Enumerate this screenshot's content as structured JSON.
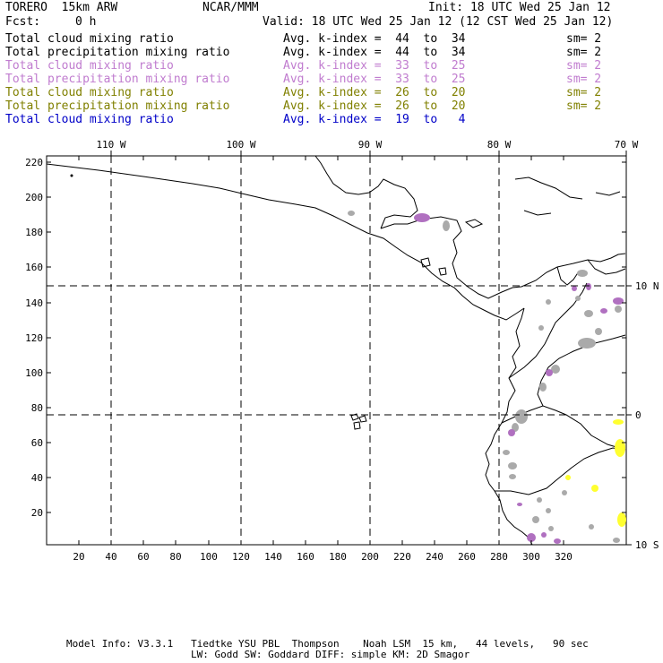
{
  "header": {
    "model": "TORERO  15km ARW",
    "org": "NCAR/MMM",
    "init": "Init: 18 UTC Wed 25 Jan 12",
    "fcst_label": "Fcst:",
    "fcst_value": "0 h",
    "valid": "Valid: 18 UTC Wed 25 Jan 12 (12 CST Wed 25 Jan 12)"
  },
  "legend": [
    {
      "name": "Total cloud mixing ratio",
      "kindex": "Avg. k-index =  44  to  34",
      "sm": "sm= 2",
      "color": "#000000"
    },
    {
      "name": "Total precipitation mixing ratio",
      "kindex": "Avg. k-index =  44  to  34",
      "sm": "sm= 2",
      "color": "#000000"
    },
    {
      "name": "Total cloud mixing ratio",
      "kindex": "Avg. k-index =  33  to  25",
      "sm": "sm= 2",
      "color": "#c07ccf"
    },
    {
      "name": "Total precipitation mixing ratio",
      "kindex": "Avg. k-index =  33  to  25",
      "sm": "sm= 2",
      "color": "#c07ccf"
    },
    {
      "name": "Total cloud mixing ratio",
      "kindex": "Avg. k-index =  26  to  20",
      "sm": "sm= 2",
      "color": "#808000"
    },
    {
      "name": "Total precipitation mixing ratio",
      "kindex": "Avg. k-index =  26  to  20",
      "sm": "sm= 2",
      "color": "#808000"
    },
    {
      "name": "Total cloud mixing ratio",
      "kindex": "Avg. k-index =  19  to   4",
      "sm": "",
      "color": "#0000c8"
    }
  ],
  "map": {
    "lon_labels": [
      "110 W",
      "100 W",
      "90 W",
      "80 W",
      "70 W"
    ],
    "lat_labels": [
      "10 N",
      "0",
      "10 S"
    ],
    "y_ticks": [
      "220",
      "200",
      "180",
      "160",
      "140",
      "120",
      "100",
      "80",
      "60",
      "40",
      "20"
    ],
    "x_ticks": [
      "20",
      "40",
      "60",
      "80",
      "100",
      "120",
      "140",
      "160",
      "180",
      "200",
      "220",
      "240",
      "260",
      "280",
      "300",
      "320"
    ],
    "colors": {
      "gray": "#aaaaaa",
      "purple": "#b070c0",
      "yellow": "#ffff30"
    }
  },
  "footer": {
    "line1": "Model Info: V3.3.1   Tiedtke YSU PBL  Thompson    Noah LSM  15 km,   44 levels,   90 sec",
    "line2": "LW: Godd SW: Goddard DIFF: simple KM: 2D Smagor"
  }
}
